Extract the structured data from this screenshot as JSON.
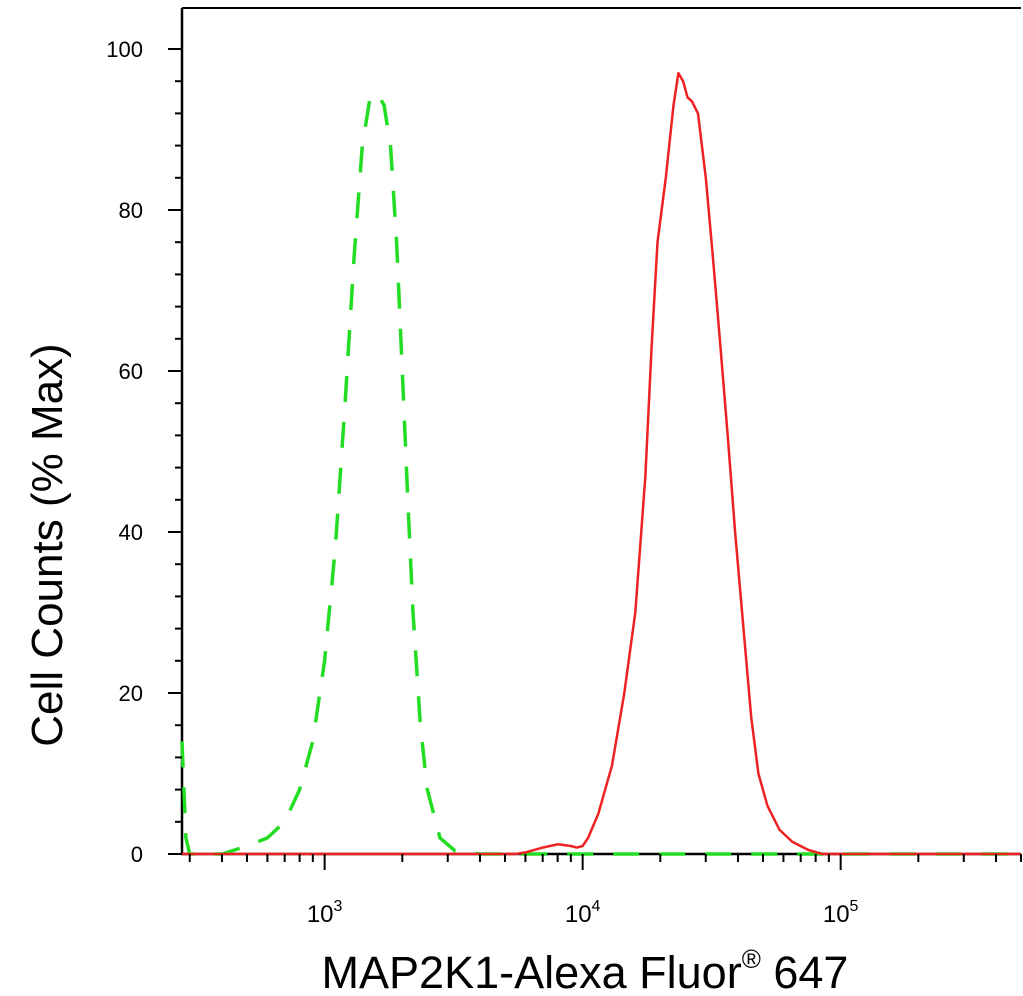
{
  "chart_data": {
    "type": "line",
    "xlabel": "MAP2K1-Alexa Fluor",
    "xlabel_mark": "®",
    "xlabel_suffix": " 647",
    "ylabel": "Cell Counts (% Max)",
    "x_scale": "log",
    "xlim": [
      280,
      500000
    ],
    "ylim": [
      0,
      100
    ],
    "y_ticks": [
      0,
      20,
      40,
      60,
      80,
      100
    ],
    "x_ticks": [
      {
        "value": 1000,
        "base": "10",
        "exp": "3"
      },
      {
        "value": 10000,
        "base": "10",
        "exp": "4"
      },
      {
        "value": 100000,
        "base": "10",
        "exp": "5"
      }
    ],
    "grid": false,
    "legend": "none",
    "series": [
      {
        "color": "#22dd22",
        "style": "dashed",
        "points": [
          [
            280,
            14
          ],
          [
            290,
            2
          ],
          [
            300,
            0
          ],
          [
            400,
            0
          ],
          [
            500,
            1
          ],
          [
            600,
            2
          ],
          [
            700,
            4
          ],
          [
            800,
            8
          ],
          [
            900,
            14
          ],
          [
            1000,
            24
          ],
          [
            1100,
            38
          ],
          [
            1200,
            56
          ],
          [
            1300,
            74
          ],
          [
            1400,
            88
          ],
          [
            1500,
            94
          ],
          [
            1600,
            94.5
          ],
          [
            1700,
            93
          ],
          [
            1800,
            88
          ],
          [
            1900,
            76
          ],
          [
            2000,
            60
          ],
          [
            2100,
            44
          ],
          [
            2200,
            30
          ],
          [
            2350,
            16
          ],
          [
            2500,
            8
          ],
          [
            2800,
            2
          ],
          [
            3200,
            0.4
          ],
          [
            4000,
            0
          ],
          [
            500000,
            0
          ]
        ]
      },
      {
        "color": "#ee2222",
        "style": "solid",
        "points": [
          [
            280,
            0
          ],
          [
            5500,
            0
          ],
          [
            6000,
            0.2
          ],
          [
            7000,
            0.8
          ],
          [
            8000,
            1.2
          ],
          [
            9000,
            1.0
          ],
          [
            9500,
            0.8
          ],
          [
            10000,
            1.0
          ],
          [
            10500,
            2
          ],
          [
            11500,
            5
          ],
          [
            13000,
            11
          ],
          [
            14500,
            20
          ],
          [
            16000,
            30
          ],
          [
            17500,
            47
          ],
          [
            18500,
            63
          ],
          [
            19500,
            76
          ],
          [
            21000,
            84
          ],
          [
            22500,
            93
          ],
          [
            23500,
            97
          ],
          [
            24500,
            96
          ],
          [
            25500,
            94
          ],
          [
            26500,
            93.5
          ],
          [
            28000,
            92
          ],
          [
            30000,
            84
          ],
          [
            32000,
            74
          ],
          [
            34000,
            64
          ],
          [
            36500,
            52
          ],
          [
            39000,
            40
          ],
          [
            42000,
            28
          ],
          [
            45000,
            17
          ],
          [
            48000,
            10
          ],
          [
            52000,
            6
          ],
          [
            58000,
            3
          ],
          [
            65000,
            1.5
          ],
          [
            75000,
            0.5
          ],
          [
            85000,
            0
          ],
          [
            500000,
            0
          ]
        ]
      }
    ]
  }
}
